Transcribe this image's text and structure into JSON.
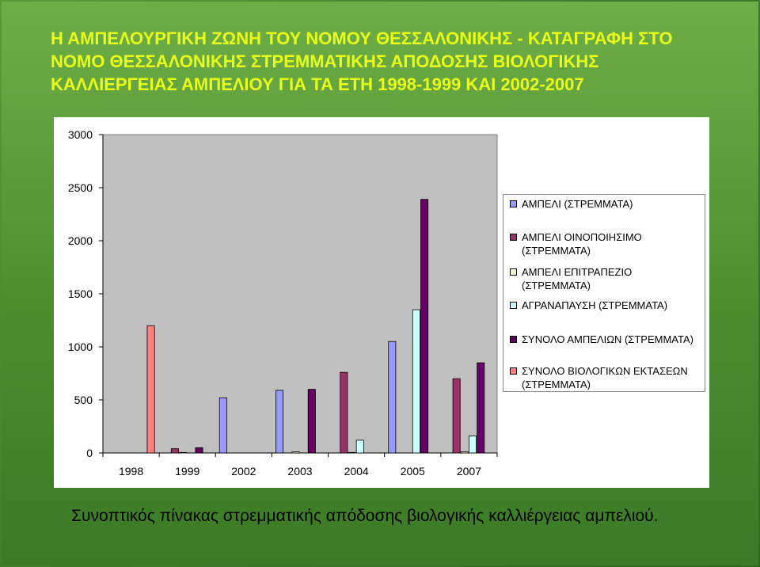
{
  "slide": {
    "title": "Η ΑΜΠΕΛΟΥΡΓΙΚΗ ΖΩΝΗ ΤΟΥ ΝΟΜΟΥ ΘΕΣΣΑΛΟΝΙΚΗΣ - ΚΑΤΑΓΡΑΦΗ ΣΤΟ ΝΟΜΟ ΘΕΣΣΑΛΟΝΙΚΗΣ ΣΤΡΕΜΜΑΤΙΚΗΣ ΑΠΟΔΟΣΗΣ ΒΙΟΛΟΓΙΚΗΣ ΚΑΛΛΙΕΡΓΕΙΑΣ ΑΜΠΕΛΙΟΥ ΓΙΑ ΤΑ ΕΤΗ 1998-1999 ΚΑΙ 2002-2007",
    "caption": "Συνοπτικός πίνακας στρεμματικής απόδοσης βιολογικής καλλιέργειας αμπελιού.",
    "title_color": "#e8ff1a"
  },
  "chart_data": {
    "type": "bar",
    "categories": [
      "1998",
      "1999",
      "2002",
      "2003",
      "2004",
      "2005",
      "2007"
    ],
    "yticks": [
      "0",
      "500",
      "1000",
      "1500",
      "2000",
      "2500",
      "3000"
    ],
    "ylim": [
      0,
      3000
    ],
    "grid": false,
    "legend_position": "right",
    "series": [
      {
        "name": "ΑΜΠΕΛΙ (ΣΤΡΕΜΜΑΤΑ)",
        "color": "#9999ff",
        "values": [
          0,
          0,
          520,
          590,
          0,
          1050,
          0
        ]
      },
      {
        "name": "ΑΜΠΕΛΙ ΟΙΝΟΠΟΙΗΣΙΜΟ (ΣΤΡΕΜΜΑΤΑ)",
        "color": "#993366",
        "values": [
          0,
          40,
          0,
          0,
          760,
          0,
          700
        ]
      },
      {
        "name": "ΑΜΠΕΛΙ ΕΠΙΤΡΑΠΕΖΙΟ (ΣΤΡΕΜΜΑΤΑ)",
        "color": "#ffffcc",
        "values": [
          0,
          5,
          0,
          10,
          5,
          0,
          10
        ]
      },
      {
        "name": "ΑΓΡΑΝΑΠΑΥΣΗ (ΣΤΡΕΜΜΑΤΑ)",
        "color": "#ccffff",
        "values": [
          0,
          0,
          0,
          0,
          120,
          1350,
          160
        ]
      },
      {
        "name": "ΣΥΝΟΛΟ ΑΜΠΕΛΙΩΝ (ΣΤΡΕΜΜΑΤΑ)",
        "color": "#660066",
        "values": [
          0,
          50,
          0,
          600,
          0,
          2390,
          850
        ]
      },
      {
        "name": "ΣΥΝΟΛΟ ΒΙΟΛΟΓΙΚΩΝ ΕΚΤΑΣΕΩΝ (ΣΤΡΕΜΜΑΤΑ)",
        "color": "#ff8080",
        "values": [
          1200,
          0,
          0,
          0,
          0,
          0,
          0
        ]
      }
    ],
    "plot_area_color": "#c0c0c0"
  }
}
